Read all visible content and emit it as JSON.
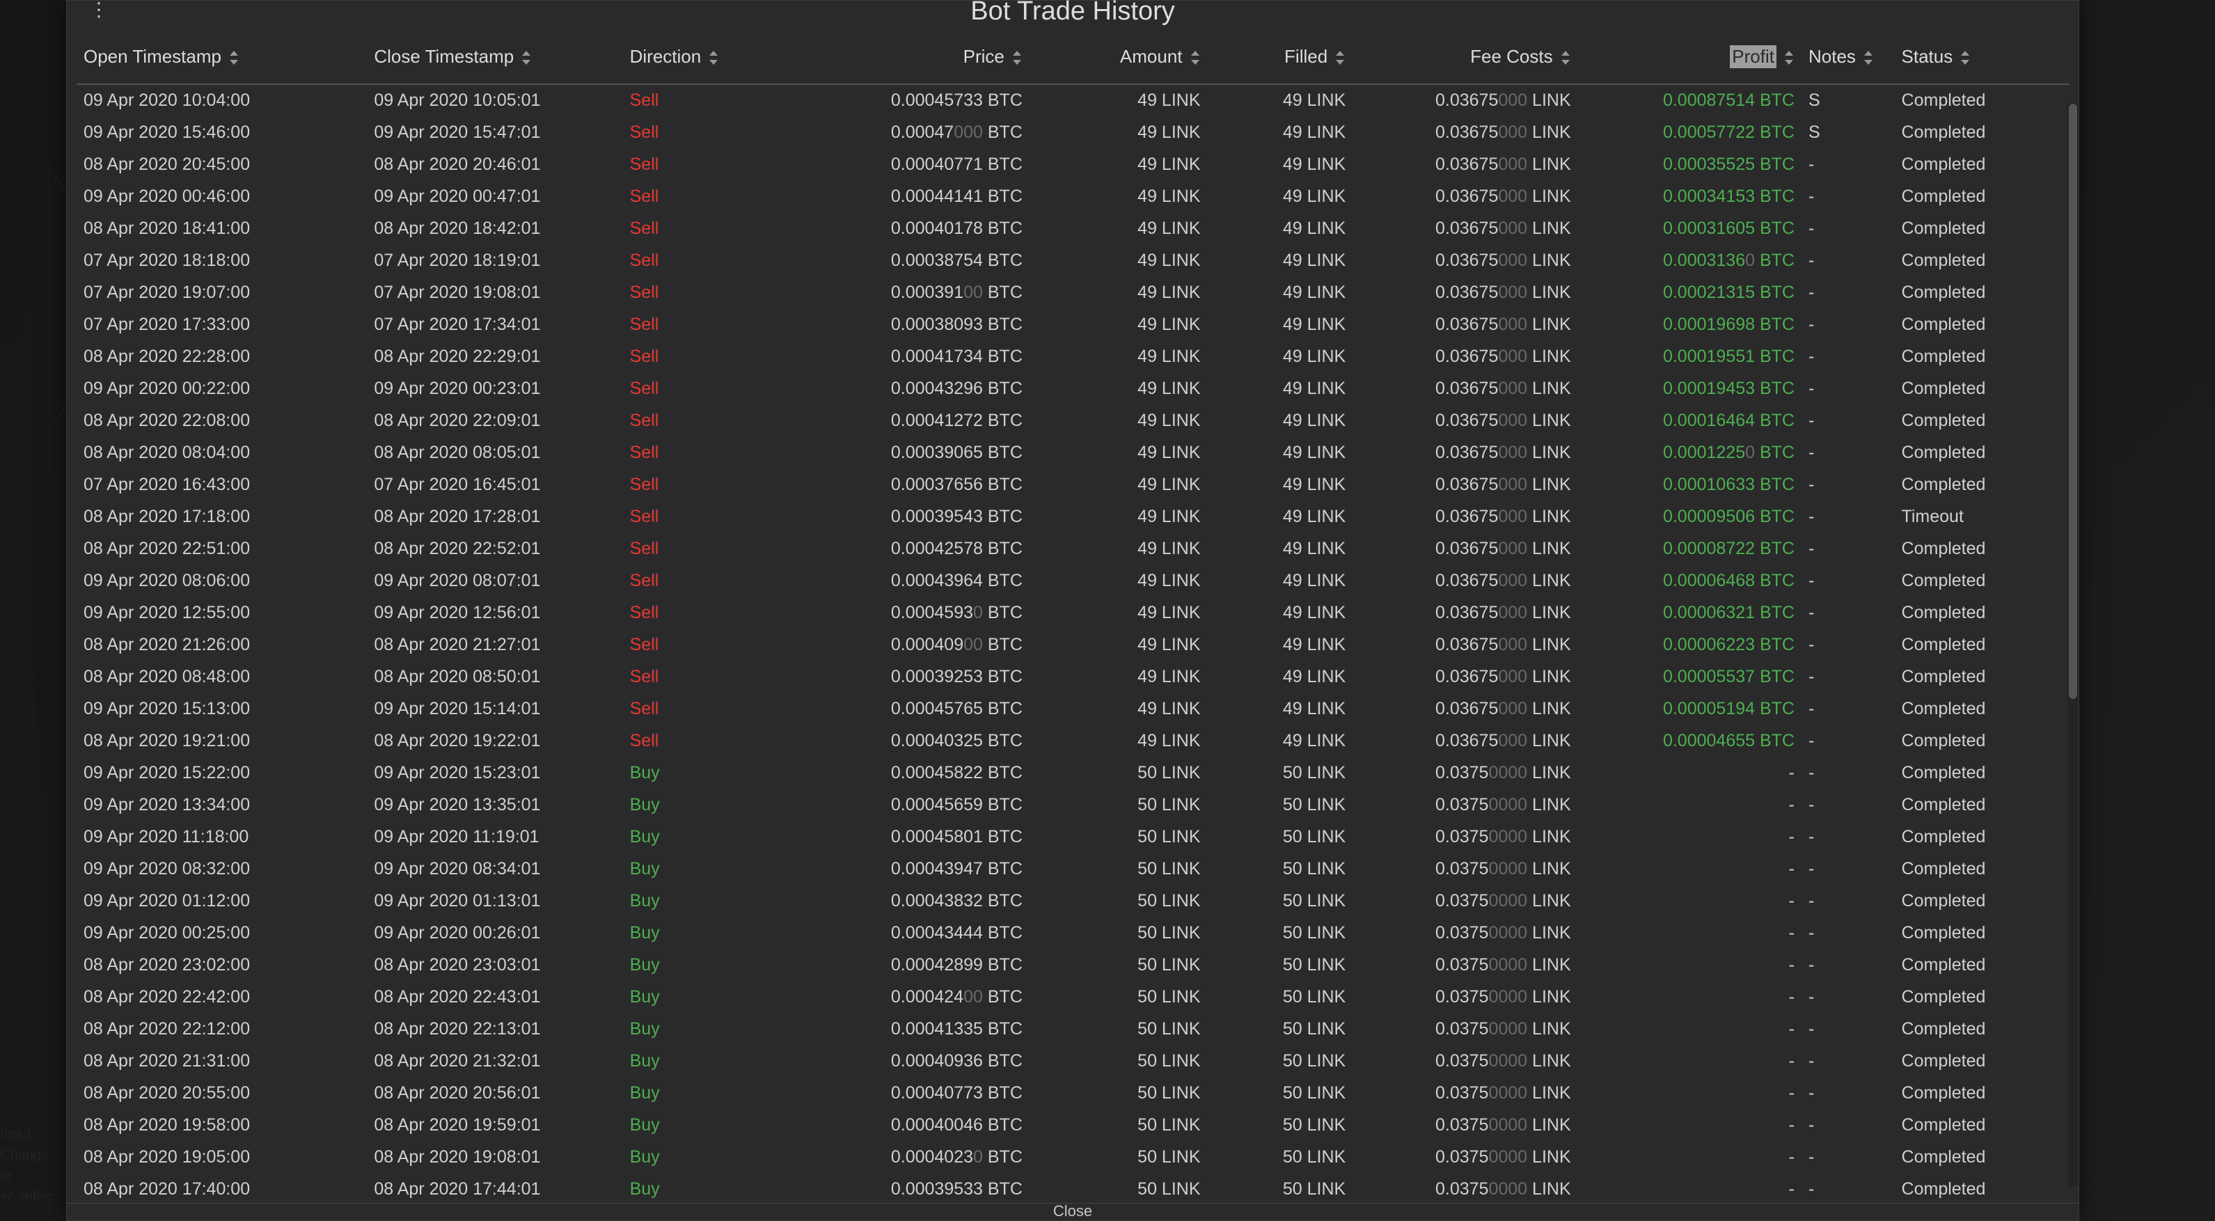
{
  "title": "Bot Trade History",
  "footer_close_label": "Close",
  "colors": {
    "background": "#2a2a2a",
    "page_background": "#1a1a1a",
    "text": "#d0d0d0",
    "dim_text": "#6a6a6a",
    "header_border": "#555555",
    "sell": "#e53935",
    "buy": "#4caf50",
    "profit_positive": "#4caf50",
    "sorted_highlight_bg": "#9e9e9e",
    "sorted_highlight_text": "#2a2a2a"
  },
  "columns": [
    {
      "key": "open_ts",
      "label": "Open Timestamp",
      "align": "left",
      "sortable": true
    },
    {
      "key": "close_ts",
      "label": "Close Timestamp",
      "align": "left",
      "sortable": true
    },
    {
      "key": "direction",
      "label": "Direction",
      "align": "left",
      "sortable": true
    },
    {
      "key": "price",
      "label": "Price",
      "align": "right",
      "sortable": true
    },
    {
      "key": "amount",
      "label": "Amount",
      "align": "right",
      "sortable": true
    },
    {
      "key": "filled",
      "label": "Filled",
      "align": "right",
      "sortable": true
    },
    {
      "key": "fee",
      "label": "Fee Costs",
      "align": "right",
      "sortable": true
    },
    {
      "key": "profit",
      "label": "Profit",
      "align": "right",
      "sortable": true,
      "sorted": true
    },
    {
      "key": "notes",
      "label": "Notes",
      "align": "left",
      "sortable": true
    },
    {
      "key": "status",
      "label": "Status",
      "align": "left",
      "sortable": true
    }
  ],
  "units": {
    "price": "BTC",
    "amount": "LINK",
    "filled": "LINK",
    "fee": "LINK",
    "profit": "BTC"
  },
  "rows": [
    {
      "open_ts": "09 Apr 2020 10:04:00",
      "close_ts": "09 Apr 2020 10:05:01",
      "direction": "Sell",
      "price": "0.00045733",
      "price_dim": "",
      "amount": "49",
      "filled": "49",
      "fee": "0.03675",
      "fee_dim": "000",
      "profit": "0.00087514",
      "notes": "S",
      "status": "Completed"
    },
    {
      "open_ts": "09 Apr 2020 15:46:00",
      "close_ts": "09 Apr 2020 15:47:01",
      "direction": "Sell",
      "price": "0.00047",
      "price_dim": "000",
      "amount": "49",
      "filled": "49",
      "fee": "0.03675",
      "fee_dim": "000",
      "profit": "0.00057722",
      "notes": "S",
      "status": "Completed"
    },
    {
      "open_ts": "08 Apr 2020 20:45:00",
      "close_ts": "08 Apr 2020 20:46:01",
      "direction": "Sell",
      "price": "0.00040771",
      "price_dim": "",
      "amount": "49",
      "filled": "49",
      "fee": "0.03675",
      "fee_dim": "000",
      "profit": "0.00035525",
      "notes": "-",
      "status": "Completed"
    },
    {
      "open_ts": "09 Apr 2020 00:46:00",
      "close_ts": "09 Apr 2020 00:47:01",
      "direction": "Sell",
      "price": "0.00044141",
      "price_dim": "",
      "amount": "49",
      "filled": "49",
      "fee": "0.03675",
      "fee_dim": "000",
      "profit": "0.00034153",
      "notes": "-",
      "status": "Completed"
    },
    {
      "open_ts": "08 Apr 2020 18:41:00",
      "close_ts": "08 Apr 2020 18:42:01",
      "direction": "Sell",
      "price": "0.00040178",
      "price_dim": "",
      "amount": "49",
      "filled": "49",
      "fee": "0.03675",
      "fee_dim": "000",
      "profit": "0.00031605",
      "notes": "-",
      "status": "Completed"
    },
    {
      "open_ts": "07 Apr 2020 18:18:00",
      "close_ts": "07 Apr 2020 18:19:01",
      "direction": "Sell",
      "price": "0.00038754",
      "price_dim": "",
      "amount": "49",
      "filled": "49",
      "fee": "0.03675",
      "fee_dim": "000",
      "profit": "0.0003136",
      "profit_dim": "0",
      "notes": "-",
      "status": "Completed"
    },
    {
      "open_ts": "07 Apr 2020 19:07:00",
      "close_ts": "07 Apr 2020 19:08:01",
      "direction": "Sell",
      "price": "0.000391",
      "price_dim": "00",
      "amount": "49",
      "filled": "49",
      "fee": "0.03675",
      "fee_dim": "000",
      "profit": "0.00021315",
      "notes": "-",
      "status": "Completed"
    },
    {
      "open_ts": "07 Apr 2020 17:33:00",
      "close_ts": "07 Apr 2020 17:34:01",
      "direction": "Sell",
      "price": "0.00038093",
      "price_dim": "",
      "amount": "49",
      "filled": "49",
      "fee": "0.03675",
      "fee_dim": "000",
      "profit": "0.00019698",
      "notes": "-",
      "status": "Completed"
    },
    {
      "open_ts": "08 Apr 2020 22:28:00",
      "close_ts": "08 Apr 2020 22:29:01",
      "direction": "Sell",
      "price": "0.00041734",
      "price_dim": "",
      "amount": "49",
      "filled": "49",
      "fee": "0.03675",
      "fee_dim": "000",
      "profit": "0.00019551",
      "notes": "-",
      "status": "Completed"
    },
    {
      "open_ts": "09 Apr 2020 00:22:00",
      "close_ts": "09 Apr 2020 00:23:01",
      "direction": "Sell",
      "price": "0.00043296",
      "price_dim": "",
      "amount": "49",
      "filled": "49",
      "fee": "0.03675",
      "fee_dim": "000",
      "profit": "0.00019453",
      "notes": "-",
      "status": "Completed"
    },
    {
      "open_ts": "08 Apr 2020 22:08:00",
      "close_ts": "08 Apr 2020 22:09:01",
      "direction": "Sell",
      "price": "0.00041272",
      "price_dim": "",
      "amount": "49",
      "filled": "49",
      "fee": "0.03675",
      "fee_dim": "000",
      "profit": "0.00016464",
      "notes": "-",
      "status": "Completed"
    },
    {
      "open_ts": "08 Apr 2020 08:04:00",
      "close_ts": "08 Apr 2020 08:05:01",
      "direction": "Sell",
      "price": "0.00039065",
      "price_dim": "",
      "amount": "49",
      "filled": "49",
      "fee": "0.03675",
      "fee_dim": "000",
      "profit": "0.0001225",
      "profit_dim": "0",
      "notes": "-",
      "status": "Completed"
    },
    {
      "open_ts": "07 Apr 2020 16:43:00",
      "close_ts": "07 Apr 2020 16:45:01",
      "direction": "Sell",
      "price": "0.00037656",
      "price_dim": "",
      "amount": "49",
      "filled": "49",
      "fee": "0.03675",
      "fee_dim": "000",
      "profit": "0.00010633",
      "notes": "-",
      "status": "Completed"
    },
    {
      "open_ts": "08 Apr 2020 17:18:00",
      "close_ts": "08 Apr 2020 17:28:01",
      "direction": "Sell",
      "price": "0.00039543",
      "price_dim": "",
      "amount": "49",
      "filled": "49",
      "fee": "0.03675",
      "fee_dim": "000",
      "profit": "0.00009506",
      "notes": "-",
      "status": "Timeout"
    },
    {
      "open_ts": "08 Apr 2020 22:51:00",
      "close_ts": "08 Apr 2020 22:52:01",
      "direction": "Sell",
      "price": "0.00042578",
      "price_dim": "",
      "amount": "49",
      "filled": "49",
      "fee": "0.03675",
      "fee_dim": "000",
      "profit": "0.00008722",
      "notes": "-",
      "status": "Completed"
    },
    {
      "open_ts": "09 Apr 2020 08:06:00",
      "close_ts": "09 Apr 2020 08:07:01",
      "direction": "Sell",
      "price": "0.00043964",
      "price_dim": "",
      "amount": "49",
      "filled": "49",
      "fee": "0.03675",
      "fee_dim": "000",
      "profit": "0.00006468",
      "notes": "-",
      "status": "Completed"
    },
    {
      "open_ts": "09 Apr 2020 12:55:00",
      "close_ts": "09 Apr 2020 12:56:01",
      "direction": "Sell",
      "price": "0.0004593",
      "price_dim": "0",
      "amount": "49",
      "filled": "49",
      "fee": "0.03675",
      "fee_dim": "000",
      "profit": "0.00006321",
      "notes": "-",
      "status": "Completed"
    },
    {
      "open_ts": "08 Apr 2020 21:26:00",
      "close_ts": "08 Apr 2020 21:27:01",
      "direction": "Sell",
      "price": "0.000409",
      "price_dim": "00",
      "amount": "49",
      "filled": "49",
      "fee": "0.03675",
      "fee_dim": "000",
      "profit": "0.00006223",
      "notes": "-",
      "status": "Completed"
    },
    {
      "open_ts": "08 Apr 2020 08:48:00",
      "close_ts": "08 Apr 2020 08:50:01",
      "direction": "Sell",
      "price": "0.00039253",
      "price_dim": "",
      "amount": "49",
      "filled": "49",
      "fee": "0.03675",
      "fee_dim": "000",
      "profit": "0.00005537",
      "notes": "-",
      "status": "Completed"
    },
    {
      "open_ts": "09 Apr 2020 15:13:00",
      "close_ts": "09 Apr 2020 15:14:01",
      "direction": "Sell",
      "price": "0.00045765",
      "price_dim": "",
      "amount": "49",
      "filled": "49",
      "fee": "0.03675",
      "fee_dim": "000",
      "profit": "0.00005194",
      "notes": "-",
      "status": "Completed"
    },
    {
      "open_ts": "08 Apr 2020 19:21:00",
      "close_ts": "08 Apr 2020 19:22:01",
      "direction": "Sell",
      "price": "0.00040325",
      "price_dim": "",
      "amount": "49",
      "filled": "49",
      "fee": "0.03675",
      "fee_dim": "000",
      "profit": "0.00004655",
      "notes": "-",
      "status": "Completed"
    },
    {
      "open_ts": "09 Apr 2020 15:22:00",
      "close_ts": "09 Apr 2020 15:23:01",
      "direction": "Buy",
      "price": "0.00045822",
      "price_dim": "",
      "amount": "50",
      "filled": "50",
      "fee": "0.0375",
      "fee_dim": "0000",
      "profit": "-",
      "notes": "-",
      "status": "Completed"
    },
    {
      "open_ts": "09 Apr 2020 13:34:00",
      "close_ts": "09 Apr 2020 13:35:01",
      "direction": "Buy",
      "price": "0.00045659",
      "price_dim": "",
      "amount": "50",
      "filled": "50",
      "fee": "0.0375",
      "fee_dim": "0000",
      "profit": "-",
      "notes": "-",
      "status": "Completed"
    },
    {
      "open_ts": "09 Apr 2020 11:18:00",
      "close_ts": "09 Apr 2020 11:19:01",
      "direction": "Buy",
      "price": "0.00045801",
      "price_dim": "",
      "amount": "50",
      "filled": "50",
      "fee": "0.0375",
      "fee_dim": "0000",
      "profit": "-",
      "notes": "-",
      "status": "Completed"
    },
    {
      "open_ts": "09 Apr 2020 08:32:00",
      "close_ts": "09 Apr 2020 08:34:01",
      "direction": "Buy",
      "price": "0.00043947",
      "price_dim": "",
      "amount": "50",
      "filled": "50",
      "fee": "0.0375",
      "fee_dim": "0000",
      "profit": "-",
      "notes": "-",
      "status": "Completed"
    },
    {
      "open_ts": "09 Apr 2020 01:12:00",
      "close_ts": "09 Apr 2020 01:13:01",
      "direction": "Buy",
      "price": "0.00043832",
      "price_dim": "",
      "amount": "50",
      "filled": "50",
      "fee": "0.0375",
      "fee_dim": "0000",
      "profit": "-",
      "notes": "-",
      "status": "Completed"
    },
    {
      "open_ts": "09 Apr 2020 00:25:00",
      "close_ts": "09 Apr 2020 00:26:01",
      "direction": "Buy",
      "price": "0.00043444",
      "price_dim": "",
      "amount": "50",
      "filled": "50",
      "fee": "0.0375",
      "fee_dim": "0000",
      "profit": "-",
      "notes": "-",
      "status": "Completed"
    },
    {
      "open_ts": "08 Apr 2020 23:02:00",
      "close_ts": "08 Apr 2020 23:03:01",
      "direction": "Buy",
      "price": "0.00042899",
      "price_dim": "",
      "amount": "50",
      "filled": "50",
      "fee": "0.0375",
      "fee_dim": "0000",
      "profit": "-",
      "notes": "-",
      "status": "Completed"
    },
    {
      "open_ts": "08 Apr 2020 22:42:00",
      "close_ts": "08 Apr 2020 22:43:01",
      "direction": "Buy",
      "price": "0.000424",
      "price_dim": "00",
      "amount": "50",
      "filled": "50",
      "fee": "0.0375",
      "fee_dim": "0000",
      "profit": "-",
      "notes": "-",
      "status": "Completed"
    },
    {
      "open_ts": "08 Apr 2020 22:12:00",
      "close_ts": "08 Apr 2020 22:13:01",
      "direction": "Buy",
      "price": "0.00041335",
      "price_dim": "",
      "amount": "50",
      "filled": "50",
      "fee": "0.0375",
      "fee_dim": "0000",
      "profit": "-",
      "notes": "-",
      "status": "Completed"
    },
    {
      "open_ts": "08 Apr 2020 21:31:00",
      "close_ts": "08 Apr 2020 21:32:01",
      "direction": "Buy",
      "price": "0.00040936",
      "price_dim": "",
      "amount": "50",
      "filled": "50",
      "fee": "0.0375",
      "fee_dim": "0000",
      "profit": "-",
      "notes": "-",
      "status": "Completed"
    },
    {
      "open_ts": "08 Apr 2020 20:55:00",
      "close_ts": "08 Apr 2020 20:56:01",
      "direction": "Buy",
      "price": "0.00040773",
      "price_dim": "",
      "amount": "50",
      "filled": "50",
      "fee": "0.0375",
      "fee_dim": "0000",
      "profit": "-",
      "notes": "-",
      "status": "Completed"
    },
    {
      "open_ts": "08 Apr 2020 19:58:00",
      "close_ts": "08 Apr 2020 19:59:01",
      "direction": "Buy",
      "price": "0.00040046",
      "price_dim": "",
      "amount": "50",
      "filled": "50",
      "fee": "0.0375",
      "fee_dim": "0000",
      "profit": "-",
      "notes": "-",
      "status": "Completed"
    },
    {
      "open_ts": "08 Apr 2020 19:05:00",
      "close_ts": "08 Apr 2020 19:08:01",
      "direction": "Buy",
      "price": "0.0004023",
      "price_dim": "0",
      "amount": "50",
      "filled": "50",
      "fee": "0.0375",
      "fee_dim": "0000",
      "profit": "-",
      "notes": "-",
      "status": "Completed"
    },
    {
      "open_ts": "08 Apr 2020 17:40:00",
      "close_ts": "08 Apr 2020 17:44:01",
      "direction": "Buy",
      "price": "0.00039533",
      "price_dim": "",
      "amount": "50",
      "filled": "50",
      "fee": "0.0375",
      "fee_dim": "0000",
      "profit": "-",
      "notes": "-",
      "status": "Completed"
    }
  ]
}
